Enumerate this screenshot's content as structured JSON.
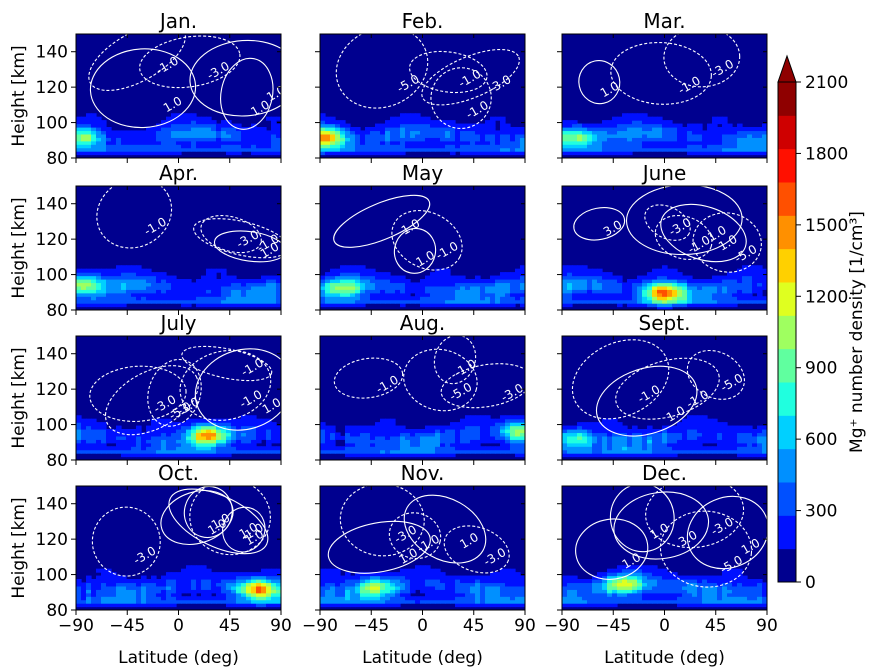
{
  "colors": {
    "colormap": [
      "#00008f",
      "#0010ff",
      "#0050ff",
      "#0090ff",
      "#00d0ff",
      "#20ffdf",
      "#60ff9f",
      "#9fff60",
      "#dfff20",
      "#ffd000",
      "#ff9000",
      "#ff5000",
      "#ff1000",
      "#cf0000",
      "#8f0000"
    ],
    "contour": "#ffffff"
  },
  "chart_data": {
    "type": "heatmap",
    "xlabel": "Latitude (deg)",
    "ylabel": "Height [km]",
    "xlim": [
      -90,
      90
    ],
    "ylim": [
      80,
      150
    ],
    "x_ticks": [
      -90,
      -45,
      0,
      45,
      90
    ],
    "x_tick_labels": [
      "−90",
      "−45",
      "0",
      "45",
      "90"
    ],
    "y_ticks": [
      80,
      100,
      120,
      140
    ],
    "colorbar": {
      "label": "Mg⁺ number density [1/cm³]",
      "min": 0,
      "max": 2100,
      "ticks": [
        0,
        300,
        600,
        900,
        1200,
        1500,
        1800,
        2100
      ],
      "extend": "max"
    },
    "contour_levels": [
      -5.0,
      -3.0,
      -1.0,
      1.0,
      3.0
    ],
    "panels": [
      {
        "title": "Jan.",
        "peak_lat": -85,
        "peak_height": 92,
        "peak_density": 1000,
        "contour_labels": [
          "1.0",
          "-3.0",
          "-1.0",
          "1.0",
          "1.0"
        ]
      },
      {
        "title": "Feb.",
        "peak_lat": -85,
        "peak_height": 92,
        "peak_density": 1600,
        "contour_labels": [
          "-1.0",
          "-5.0",
          "-3.0",
          "-1.0"
        ]
      },
      {
        "title": "Mar.",
        "peak_lat": -80,
        "peak_height": 92,
        "peak_density": 1100,
        "contour_labels": [
          "-1.0",
          "-3.0",
          "1.0"
        ]
      },
      {
        "title": "Apr.",
        "peak_lat": -85,
        "peak_height": 95,
        "peak_density": 1200,
        "contour_labels": [
          "1.0",
          "-3.0",
          "-1.0",
          "-1.0"
        ]
      },
      {
        "title": "May",
        "peak_lat": -70,
        "peak_height": 92,
        "peak_density": 900,
        "contour_labels": [
          "1.0",
          "1.0",
          "-1.0"
        ]
      },
      {
        "title": "June",
        "peak_lat": 0,
        "peak_height": 90,
        "peak_density": 1600,
        "contour_labels": [
          "1.0",
          "-3.0",
          "-5.0",
          "-1.0",
          "3.0",
          "1.0"
        ]
      },
      {
        "title": "July",
        "peak_lat": 25,
        "peak_height": 95,
        "peak_density": 1400,
        "contour_labels": [
          "-3.0",
          "-1.0",
          "-5.0",
          "-1.0",
          "-3.0",
          "1.0"
        ]
      },
      {
        "title": "Aug.",
        "peak_lat": 85,
        "peak_height": 97,
        "peak_density": 1100,
        "contour_labels": [
          "-1.0",
          "-5.0",
          "-3.0",
          "-1.0"
        ]
      },
      {
        "title": "Sept.",
        "peak_lat": -80,
        "peak_height": 92,
        "peak_density": 900,
        "contour_labels": [
          "1.0",
          "-5.0",
          "-1.0",
          "-1.0"
        ]
      },
      {
        "title": "Oct.",
        "peak_lat": 70,
        "peak_height": 92,
        "peak_density": 1400,
        "contour_labels": [
          "1.0",
          "-1.0",
          "-3.0",
          "1.0",
          "1.0",
          "1.0"
        ]
      },
      {
        "title": "Nov.",
        "peak_lat": -40,
        "peak_height": 93,
        "peak_density": 1000,
        "contour_labels": [
          "-3.0",
          "-1.0",
          "-3.0",
          "1.0",
          "1.0"
        ]
      },
      {
        "title": "Dec.",
        "peak_lat": -35,
        "peak_height": 95,
        "peak_density": 1300,
        "contour_labels": [
          "1.0",
          "-5.0",
          "-3.0",
          "3.0",
          "1.0",
          "1.0"
        ]
      }
    ]
  }
}
